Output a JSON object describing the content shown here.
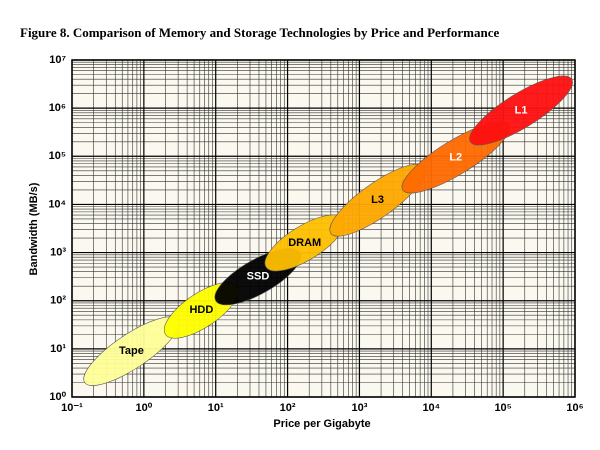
{
  "chart_data": {
    "type": "ellipse-range",
    "title": "Figure 8. Comparison of Memory and Storage Technologies by Price and Performance",
    "x_label": "Price per Gigabyte",
    "y_label": "Bandwidth (MB/s)",
    "x_scale": "log",
    "y_scale": "log",
    "grid": true,
    "xlim": [
      0.1,
      1000000
    ],
    "ylim": [
      1,
      10000000
    ],
    "xticks": [
      {
        "value": 0.1,
        "label": "10⁻¹"
      },
      {
        "value": 1,
        "label": "10⁰"
      },
      {
        "value": 10,
        "label": "10¹"
      },
      {
        "value": 100,
        "label": "10²"
      },
      {
        "value": 1000,
        "label": "10³"
      },
      {
        "value": 10000,
        "label": "10⁴"
      },
      {
        "value": 100000,
        "label": "10⁵"
      },
      {
        "value": 1000000,
        "label": "10⁶"
      }
    ],
    "yticks": [
      {
        "value": 1,
        "label": "10⁰"
      },
      {
        "value": 10,
        "label": "10¹"
      },
      {
        "value": 100,
        "label": "10²"
      },
      {
        "value": 1000,
        "label": "10³"
      },
      {
        "value": 10000,
        "label": "10⁴"
      },
      {
        "value": 100000,
        "label": "10⁵"
      },
      {
        "value": 1000000,
        "label": "10⁶"
      },
      {
        "value": 10000000,
        "label": "10⁷"
      }
    ],
    "series": [
      {
        "name": "Tape",
        "color": "#ffff99",
        "label_color": "#000000",
        "price": [
          0.15,
          3
        ],
        "bandwidth": [
          2,
          40
        ]
      },
      {
        "name": "HDD",
        "color": "#ffff00",
        "label_color": "#000000",
        "price": [
          2,
          20
        ],
        "bandwidth": [
          20,
          200
        ]
      },
      {
        "name": "SSD",
        "color": "#000000",
        "label_color": "#ffffff",
        "price": [
          10,
          150
        ],
        "bandwidth": [
          100,
          1000
        ]
      },
      {
        "name": "DRAM",
        "color": "#ffc000",
        "label_color": "#000000",
        "price": [
          50,
          600
        ],
        "bandwidth": [
          500,
          5000
        ]
      },
      {
        "name": "L3",
        "color": "#ffa800",
        "label_color": "#000000",
        "price": [
          400,
          8000
        ],
        "bandwidth": [
          2500,
          60000
        ]
      },
      {
        "name": "L2",
        "color": "#ff6a00",
        "label_color": "#ffffff",
        "price": [
          4000,
          120000
        ],
        "bandwidth": [
          20000,
          450000
        ]
      },
      {
        "name": "L1",
        "color": "#ff1010",
        "label_color": "#ffffff",
        "price": [
          35000,
          900000
        ],
        "bandwidth": [
          200000,
          4000000
        ]
      }
    ]
  }
}
